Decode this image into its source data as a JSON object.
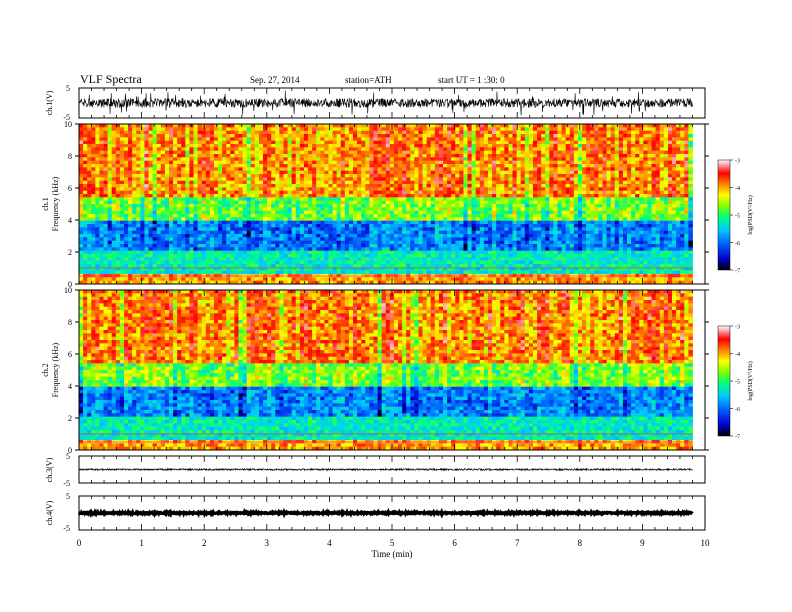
{
  "header": {
    "title": "VLF  Spectra",
    "date": "Sep. 27, 2014",
    "station": "station=ATH",
    "start": "start  UT =   1  :30: 0"
  },
  "colors": {
    "background": "#ffffff",
    "axis": "#000000",
    "trace": "#000000",
    "colorbar_stops": [
      "#000000",
      "#0000c8",
      "#0060ff",
      "#00c8ff",
      "#00ff80",
      "#80ff00",
      "#ffff00",
      "#ff8000",
      "#ff0000",
      "#ffffff"
    ]
  },
  "chart_data": [
    {
      "type": "line",
      "name": "ch1-waveform",
      "ylabel": "ch.1(V)",
      "y_ticks": [
        "5",
        "-5"
      ],
      "ylim": [
        -5,
        5
      ],
      "xlim": [
        0,
        10
      ],
      "data_end_min": 9.8,
      "baseline_v": 0
    },
    {
      "type": "heatmap",
      "name": "ch1-spectrogram",
      "ylabel": "Frequency  (kHz)",
      "channel_label": "ch.1",
      "y_ticks": [
        "0",
        "2",
        "4",
        "6",
        "8",
        "10"
      ],
      "ylim": [
        0,
        10
      ],
      "xlim": [
        0,
        10
      ],
      "data_end_min": 9.8,
      "zlim": [
        -7,
        -3
      ],
      "colorbar": {
        "label": "log(PSD(V²/Hz)",
        "ticks": [
          "-3",
          "-4",
          "-5",
          "-6",
          "-7"
        ]
      }
    },
    {
      "type": "heatmap",
      "name": "ch2-spectrogram",
      "ylabel": "Frequency  (kHz)",
      "channel_label": "ch.2",
      "y_ticks": [
        "0",
        "2",
        "4",
        "6",
        "8",
        "10"
      ],
      "ylim": [
        0,
        10
      ],
      "xlim": [
        0,
        10
      ],
      "data_end_min": 9.8,
      "zlim": [
        -7,
        -3
      ],
      "colorbar": {
        "label": "log(PSD(V²/Hz)",
        "ticks": [
          "-3",
          "-4",
          "-5",
          "-6",
          "-7"
        ]
      }
    },
    {
      "type": "line",
      "name": "ch3-waveform",
      "ylabel": "ch.3(V)",
      "y_ticks": [
        "5",
        "-5"
      ],
      "ylim": [
        -5,
        5
      ],
      "xlim": [
        0,
        10
      ],
      "data_end_min": 9.8,
      "baseline_v": 0
    },
    {
      "type": "line",
      "name": "ch4-waveform",
      "ylabel": "ch.4(V)",
      "y_ticks": [
        "5",
        "-5"
      ],
      "ylim": [
        -5,
        5
      ],
      "xlim": [
        0,
        10
      ],
      "data_end_min": 9.8,
      "baseline_v": 0
    }
  ],
  "x_axis": {
    "label": "Time  (min)",
    "ticks": [
      "0",
      "1",
      "2",
      "3",
      "4",
      "5",
      "6",
      "7",
      "8",
      "9",
      "10"
    ],
    "range": [
      0,
      10
    ]
  }
}
